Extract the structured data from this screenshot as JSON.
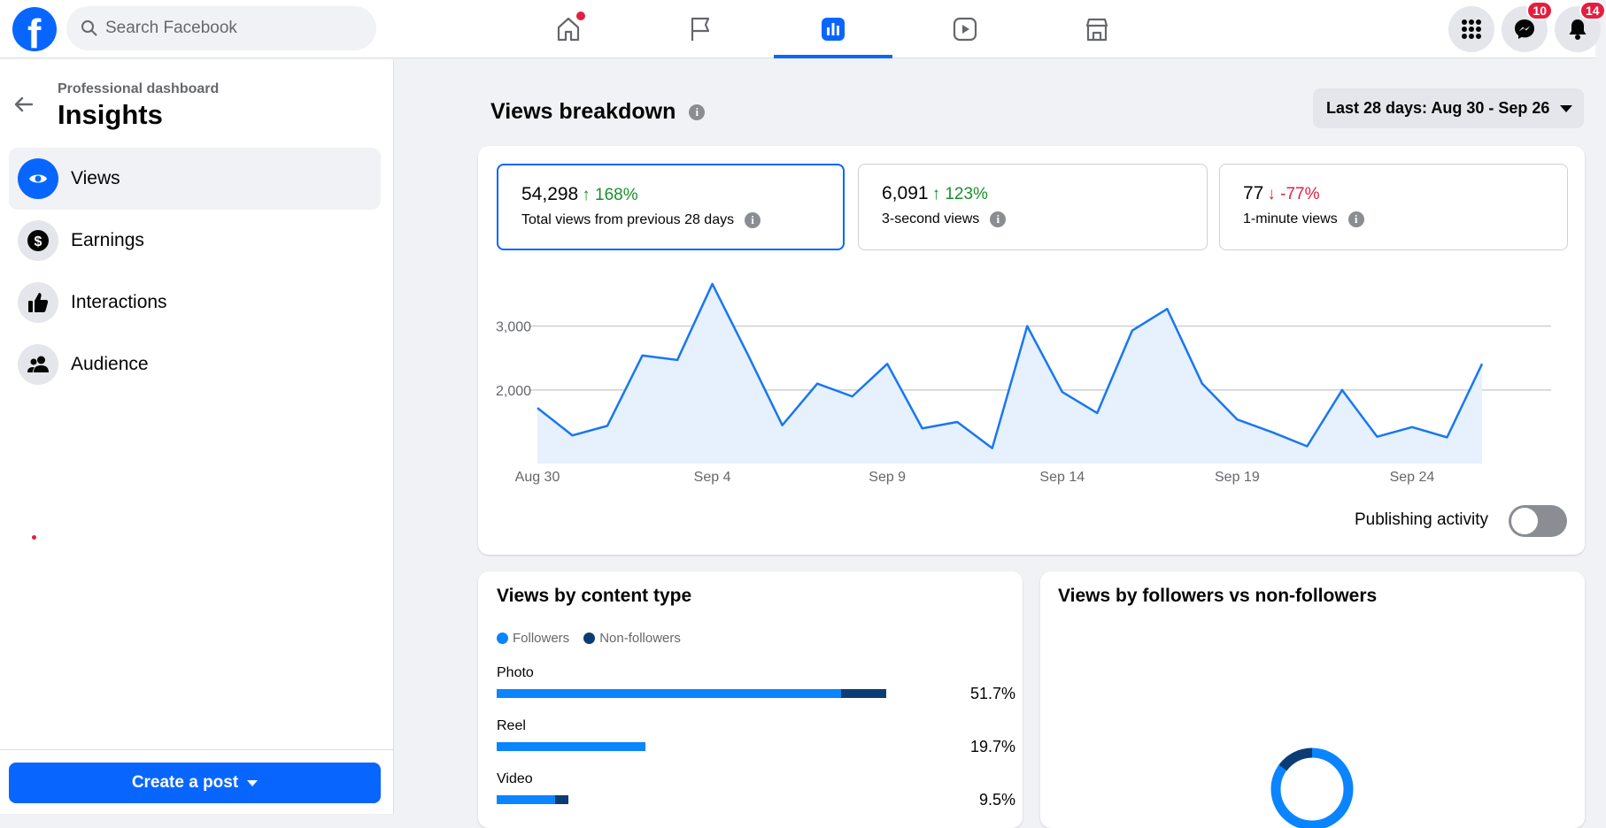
{
  "search": {
    "placeholder": "Search Facebook"
  },
  "nav": {
    "tabs": [
      {
        "name": "home",
        "icon": "home-icon"
      },
      {
        "name": "pages",
        "icon": "flag-icon"
      },
      {
        "name": "dashboard",
        "icon": "bar-chart-icon"
      },
      {
        "name": "video",
        "icon": "video-icon"
      },
      {
        "name": "marketplace",
        "icon": "store-icon"
      }
    ],
    "messenger_badge": "10",
    "notifications_badge": "14"
  },
  "sidebar": {
    "breadcrumb": "Professional dashboard",
    "title": "Insights",
    "items": [
      {
        "label": "Views",
        "icon": "eye-icon"
      },
      {
        "label": "Earnings",
        "icon": "dollar-icon"
      },
      {
        "label": "Interactions",
        "icon": "thumbs-up-icon"
      },
      {
        "label": "Audience",
        "icon": "people-icon"
      }
    ],
    "create_post": "Create a post"
  },
  "main": {
    "title": "Views breakdown",
    "date_range": "Last 28 days: Aug 30 - Sep 26",
    "stats": [
      {
        "value": "54,298",
        "change": "↑ 168%",
        "direction": "up",
        "label": "Total views from previous 28 days"
      },
      {
        "value": "6,091",
        "change": "↑ 123%",
        "direction": "up",
        "label": "3-second views"
      },
      {
        "value": "77",
        "change": "↓ -77%",
        "direction": "down",
        "label": "1-minute views"
      }
    ],
    "publishing_activity": "Publishing activity",
    "content_type": {
      "title": "Views by content type",
      "legend": [
        "Followers",
        "Non-followers"
      ],
      "rows": [
        {
          "label": "Photo",
          "percent": "51.7%",
          "followers": 45.7,
          "non_followers": 6.0
        },
        {
          "label": "Reel",
          "percent": "19.7%",
          "followers": 19.7,
          "non_followers": 0
        },
        {
          "label": "Video",
          "percent": "9.5%",
          "followers": 7.7,
          "non_followers": 1.8
        }
      ]
    },
    "followers_title": "Views by followers vs non-followers"
  },
  "colors": {
    "accent": "#0866ff",
    "followers": "#0a84ff",
    "non_followers": "#0b3d74",
    "up": "#1a8f2e",
    "down": "#e41e3f"
  },
  "chart_data": {
    "type": "area",
    "x": [
      "Aug 30",
      "Aug 31",
      "Sep 1",
      "Sep 2",
      "Sep 3",
      "Sep 4",
      "Sep 5",
      "Sep 6",
      "Sep 7",
      "Sep 8",
      "Sep 9",
      "Sep 10",
      "Sep 11",
      "Sep 12",
      "Sep 13",
      "Sep 14",
      "Sep 15",
      "Sep 16",
      "Sep 17",
      "Sep 18",
      "Sep 19",
      "Sep 20",
      "Sep 21",
      "Sep 22",
      "Sep 23",
      "Sep 24",
      "Sep 25",
      "Sep 26"
    ],
    "values": [
      1720,
      1290,
      1440,
      2540,
      2470,
      3660,
      2570,
      1450,
      2100,
      1900,
      2410,
      1400,
      1500,
      1090,
      3000,
      1970,
      1640,
      2930,
      3270,
      2100,
      1540,
      1340,
      1120,
      2000,
      1270,
      1420,
      1260,
      2410
    ],
    "xticks": [
      "Aug 30",
      "Sep 4",
      "Sep 9",
      "Sep 14",
      "Sep 19",
      "Sep 24"
    ],
    "yticks": [
      "2,000",
      "3,000"
    ],
    "ylim": [
      850,
      3950
    ],
    "grid": true
  }
}
